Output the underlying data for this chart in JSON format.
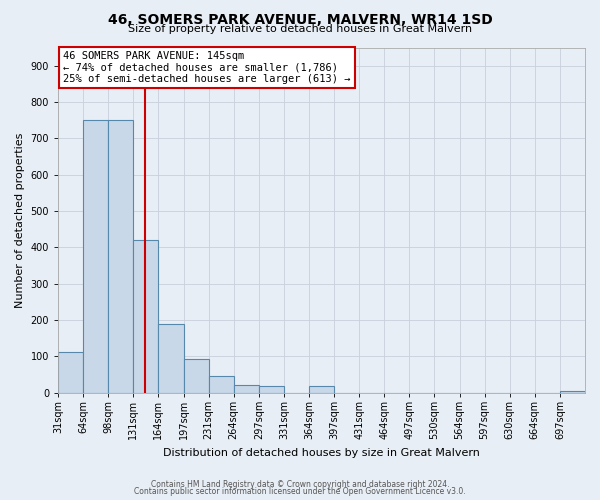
{
  "title": "46, SOMERS PARK AVENUE, MALVERN, WR14 1SD",
  "subtitle": "Size of property relative to detached houses in Great Malvern",
  "xlabel": "Distribution of detached houses by size in Great Malvern",
  "ylabel": "Number of detached properties",
  "bar_color": "#c8d8e8",
  "bar_edge_color": "#5588aa",
  "bins": [
    "31sqm",
    "64sqm",
    "98sqm",
    "131sqm",
    "164sqm",
    "197sqm",
    "231sqm",
    "264sqm",
    "297sqm",
    "331sqm",
    "364sqm",
    "397sqm",
    "431sqm",
    "464sqm",
    "497sqm",
    "530sqm",
    "564sqm",
    "597sqm",
    "630sqm",
    "664sqm",
    "697sqm"
  ],
  "values": [
    112,
    750,
    750,
    420,
    190,
    93,
    45,
    22,
    18,
    0,
    18,
    0,
    0,
    0,
    0,
    0,
    0,
    0,
    0,
    0,
    5
  ],
  "ylim": [
    0,
    950
  ],
  "yticks": [
    0,
    100,
    200,
    300,
    400,
    500,
    600,
    700,
    800,
    900
  ],
  "property_line_bin_index": 3.45,
  "annotation_text_line1": "46 SOMERS PARK AVENUE: 145sqm",
  "annotation_text_line2": "← 74% of detached houses are smaller (1,786)",
  "annotation_text_line3": "25% of semi-detached houses are larger (613) →",
  "annotation_box_color": "#ffffff",
  "annotation_box_edge": "#cc0000",
  "red_line_color": "#cc0000",
  "background_color": "#e8eef5",
  "footer_line1": "Contains HM Land Registry data © Crown copyright and database right 2024.",
  "footer_line2": "Contains public sector information licensed under the Open Government Licence v3.0.",
  "grid_color": "#c8d0dc",
  "title_fontsize": 10,
  "subtitle_fontsize": 8,
  "ylabel_fontsize": 8,
  "xlabel_fontsize": 8,
  "tick_fontsize": 7,
  "annotation_fontsize": 7.5,
  "footer_fontsize": 5.5
}
